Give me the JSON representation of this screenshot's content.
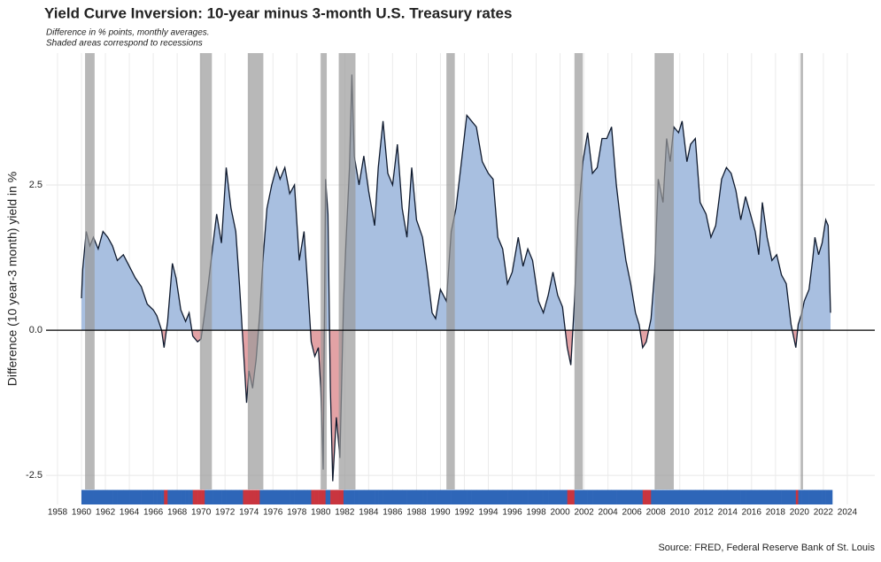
{
  "chart_data": {
    "type": "area",
    "title": "Yield Curve Inversion: 10-year minus 3-month U.S. Treasury rates",
    "subtitle": [
      "Difference in % points, monthly averages.",
      "Shaded areas correspond to recessions"
    ],
    "ylabel": "Difference (10 year-3 month) yield in %",
    "source": "Source: FRED, Federal Reserve Bank of St. Louis",
    "positive_color": "#a8bfe0",
    "negative_color": "#e3a2a5",
    "strip_positive_color": "#2e66b8",
    "strip_negative_color": "#c9353f",
    "recession_color": "#9a9a9a",
    "recessions": [
      [
        1960.3,
        1961.1
      ],
      [
        1969.9,
        1970.9
      ],
      [
        1973.9,
        1975.2
      ],
      [
        1980.0,
        1980.5
      ],
      [
        1981.5,
        1982.9
      ],
      [
        1990.5,
        1991.2
      ],
      [
        2001.2,
        2001.9
      ],
      [
        2007.9,
        2009.5
      ],
      [
        2020.1,
        2020.3
      ]
    ],
    "x": [
      1960.0,
      1960.1,
      1960.4,
      1960.7,
      1961.0,
      1961.4,
      1961.8,
      1962.2,
      1962.6,
      1963.0,
      1963.5,
      1964.0,
      1964.5,
      1965.0,
      1965.5,
      1966.0,
      1966.3,
      1966.7,
      1966.9,
      1967.2,
      1967.6,
      1967.9,
      1968.3,
      1968.7,
      1969.0,
      1969.3,
      1969.7,
      1970.0,
      1970.3,
      1970.6,
      1971.0,
      1971.3,
      1971.7,
      1972.1,
      1972.5,
      1972.9,
      1973.2,
      1973.5,
      1973.8,
      1974.0,
      1974.3,
      1974.6,
      1974.9,
      1975.2,
      1975.5,
      1975.9,
      1976.3,
      1976.6,
      1977.0,
      1977.4,
      1977.8,
      1978.2,
      1978.6,
      1978.9,
      1979.2,
      1979.5,
      1979.8,
      1980.0,
      1980.2,
      1980.4,
      1980.6,
      1980.8,
      1981.0,
      1981.3,
      1981.6,
      1981.9,
      1982.1,
      1982.4,
      1982.6,
      1982.8,
      1983.2,
      1983.6,
      1984.0,
      1984.5,
      1984.8,
      1985.2,
      1985.6,
      1986.0,
      1986.4,
      1986.8,
      1987.2,
      1987.6,
      1988.0,
      1988.5,
      1988.9,
      1989.3,
      1989.6,
      1990.0,
      1990.5,
      1990.9,
      1991.3,
      1991.7,
      1992.2,
      1992.6,
      1993.0,
      1993.5,
      1994.0,
      1994.4,
      1994.8,
      1995.2,
      1995.6,
      1996.0,
      1996.5,
      1996.9,
      1997.3,
      1997.7,
      1998.2,
      1998.6,
      1999.0,
      1999.4,
      1999.8,
      2000.2,
      2000.6,
      2000.9,
      2001.2,
      2001.5,
      2001.9,
      2002.3,
      2002.7,
      2003.1,
      2003.5,
      2003.9,
      2004.3,
      2004.7,
      2005.1,
      2005.5,
      2005.9,
      2006.3,
      2006.6,
      2006.9,
      2007.2,
      2007.6,
      2007.9,
      2008.2,
      2008.6,
      2008.9,
      2009.2,
      2009.5,
      2009.9,
      2010.2,
      2010.6,
      2010.9,
      2011.3,
      2011.7,
      2012.2,
      2012.6,
      2013.0,
      2013.5,
      2013.9,
      2014.3,
      2014.7,
      2015.1,
      2015.5,
      2015.9,
      2016.3,
      2016.6,
      2016.9,
      2017.3,
      2017.7,
      2018.1,
      2018.5,
      2018.9,
      2019.3,
      2019.7,
      2019.9,
      2020.2,
      2020.4,
      2020.8,
      2021.1,
      2021.3,
      2021.6,
      2021.9,
      2022.2,
      2022.4,
      2022.6
    ],
    "values": [
      0.55,
      1.05,
      1.7,
      1.45,
      1.6,
      1.4,
      1.7,
      1.6,
      1.45,
      1.2,
      1.3,
      1.1,
      0.9,
      0.75,
      0.45,
      0.35,
      0.25,
      0.0,
      -0.3,
      0.15,
      1.15,
      0.9,
      0.35,
      0.15,
      0.3,
      -0.1,
      -0.2,
      -0.15,
      0.3,
      0.8,
      1.5,
      2.0,
      1.5,
      2.8,
      2.1,
      1.7,
      0.8,
      -0.2,
      -1.25,
      -0.7,
      -1.0,
      -0.5,
      0.3,
      1.3,
      2.1,
      2.5,
      2.8,
      2.6,
      2.8,
      2.35,
      2.5,
      1.2,
      1.7,
      0.8,
      -0.2,
      -0.45,
      -0.3,
      -1.0,
      -2.4,
      2.6,
      2.0,
      -1.0,
      -2.6,
      -1.5,
      -2.2,
      0.5,
      1.5,
      2.8,
      4.4,
      3.0,
      2.5,
      3.0,
      2.4,
      1.8,
      2.8,
      3.6,
      2.7,
      2.5,
      3.2,
      2.1,
      1.6,
      2.8,
      1.9,
      1.6,
      1.0,
      0.3,
      0.2,
      0.7,
      0.5,
      1.7,
      2.1,
      2.8,
      3.7,
      3.6,
      3.5,
      2.9,
      2.7,
      2.6,
      1.6,
      1.4,
      0.8,
      1.0,
      1.6,
      1.1,
      1.4,
      1.2,
      0.5,
      0.3,
      0.6,
      1.0,
      0.6,
      0.4,
      -0.3,
      -0.6,
      0.5,
      1.9,
      2.9,
      3.4,
      2.7,
      2.8,
      3.3,
      3.3,
      3.5,
      2.5,
      1.8,
      1.2,
      0.8,
      0.3,
      0.1,
      -0.3,
      -0.2,
      0.2,
      1.0,
      2.6,
      2.2,
      3.3,
      2.9,
      3.5,
      3.4,
      3.6,
      2.9,
      3.2,
      3.3,
      2.2,
      2.0,
      1.6,
      1.8,
      2.6,
      2.8,
      2.7,
      2.4,
      1.9,
      2.3,
      2.0,
      1.7,
      1.3,
      2.2,
      1.6,
      1.2,
      1.3,
      0.95,
      0.8,
      0.1,
      -0.3,
      0.1,
      0.3,
      0.5,
      0.7,
      1.2,
      1.6,
      1.3,
      1.5,
      1.9,
      1.8,
      0.3
    ],
    "xlim": [
      1957.04,
      2026.3
    ],
    "ylim": [
      -3.0,
      4.77
    ],
    "strip_range": [
      -2.75,
      -3.0
    ],
    "xticks": [
      1958,
      1960,
      1962,
      1964,
      1966,
      1968,
      1970,
      1972,
      1974,
      1976,
      1978,
      1980,
      1982,
      1984,
      1986,
      1988,
      1990,
      1992,
      1994,
      1996,
      1998,
      2000,
      2002,
      2004,
      2006,
      2008,
      2010,
      2012,
      2014,
      2016,
      2018,
      2020,
      2022,
      2024
    ],
    "yticks": [
      -2.5,
      {
        "value": 0,
        "label": "0.0"
      },
      2.5
    ],
    "grid": true
  }
}
